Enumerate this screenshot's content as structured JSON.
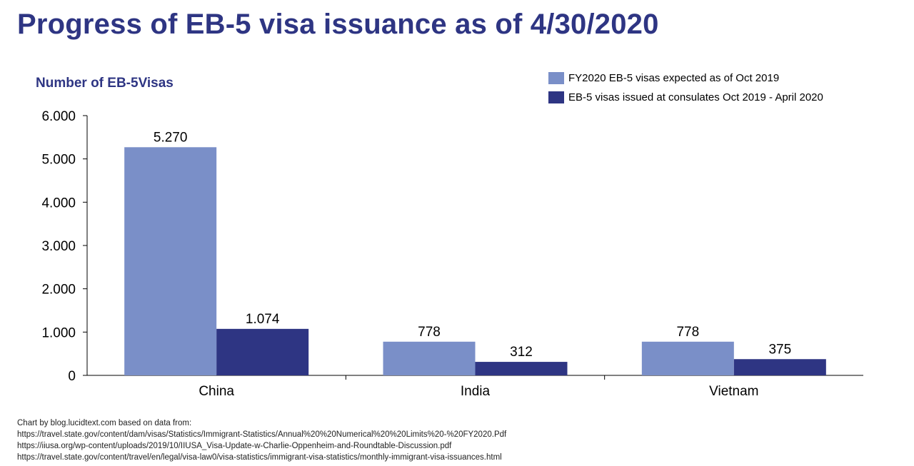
{
  "title": "Progress of EB-5 visa issuance as of 4/30/2020",
  "colors": {
    "title": "#2E3583",
    "series_expected": "#7A8FC8",
    "series_issued": "#2E3583"
  },
  "legend": [
    {
      "label": "FY2020 EB-5 visas expected as of Oct 2019",
      "color": "#7A8FC8"
    },
    {
      "label": "EB-5 visas issued at consulates  Oct 2019 - April 2020",
      "color": "#2E3583"
    }
  ],
  "chart_data": {
    "type": "bar",
    "ylabel": "Number of EB-5Visas",
    "categories": [
      "China",
      "India",
      "Vietnam"
    ],
    "series": [
      {
        "name": "FY2020 EB-5 visas expected as of Oct 2019",
        "values": [
          5270,
          778,
          778
        ],
        "labels": [
          "5.270",
          "778",
          "778"
        ],
        "color": "#7A8FC8"
      },
      {
        "name": "EB-5 visas issued at consulates  Oct 2019 - April 2020",
        "values": [
          1074,
          312,
          375
        ],
        "labels": [
          "1.074",
          "312",
          "375"
        ],
        "color": "#2E3583"
      }
    ],
    "ylim": [
      0,
      6000
    ],
    "yticks": [
      0,
      1000,
      2000,
      3000,
      4000,
      5000,
      6000
    ],
    "ytick_labels": [
      "0",
      "1.000",
      "2.000",
      "3.000",
      "4.000",
      "5.000",
      "6.000"
    ],
    "grid": false,
    "legend_position": "top-right"
  },
  "footer": {
    "lines": [
      "Chart by blog.lucidtext.com based on data from:",
      "https://travel.state.gov/content/dam/visas/Statistics/Immigrant-Statistics/Annual%20%20Numerical%20%20Limits%20-%20FY2020.Pdf",
      "https://iiusa.org/wp-content/uploads/2019/10/IIUSA_Visa-Update-w-Charlie-Oppenheim-and-Roundtable-Discussion.pdf",
      "https://travel.state.gov/content/travel/en/legal/visa-law0/visa-statistics/immigrant-visa-statistics/monthly-immigrant-visa-issuances.html"
    ]
  }
}
